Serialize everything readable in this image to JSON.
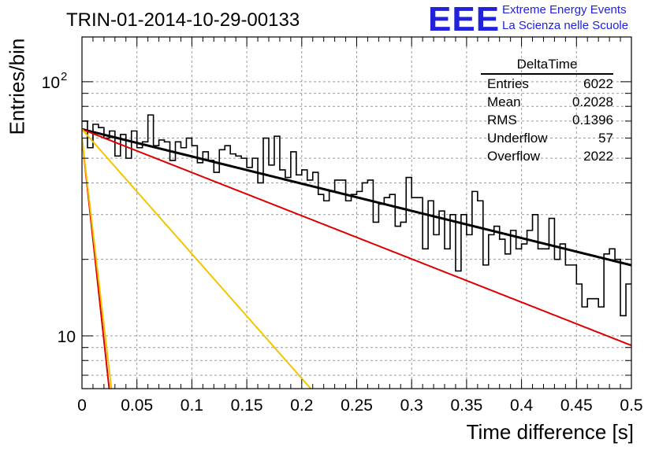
{
  "header": {
    "run_title": "TRIN-01-2014-10-29-00133",
    "logo_mark": "EEE",
    "logo_line1": "Extreme Energy Events",
    "logo_line2": "La Scienza nelle Scuole"
  },
  "stats_box": {
    "title": "DeltaTime",
    "rows": [
      {
        "label": "Entries",
        "value": "6022"
      },
      {
        "label": "Mean",
        "value": "0.2028"
      },
      {
        "label": "RMS",
        "value": "0.1396"
      },
      {
        "label": "Underflow",
        "value": "57"
      },
      {
        "label": "Overflow",
        "value": "2022"
      }
    ]
  },
  "chart_data": {
    "type": "line",
    "xlabel": "Time difference [s]",
    "ylabel": "Entries/bin",
    "xlim": [
      0,
      0.5
    ],
    "ylim": [
      6.2,
      150
    ],
    "y_scale": "log",
    "grid": true,
    "x_ticks": [
      "0",
      "0.05",
      "0.1",
      "0.15",
      "0.2",
      "0.25",
      "0.3",
      "0.35",
      "0.4",
      "0.45",
      "0.5"
    ],
    "y_tick_labels": [
      {
        "value": 10,
        "label": "10"
      },
      {
        "value": 100,
        "label": "10^2"
      }
    ],
    "histogram": {
      "bin_width": 0.005,
      "values": [
        70,
        55,
        68,
        66,
        60,
        64,
        51,
        62,
        50,
        64,
        55,
        58,
        74,
        56,
        59,
        58,
        49,
        58,
        55,
        60,
        56,
        48,
        53,
        49,
        44,
        54,
        56,
        52,
        51,
        50,
        46,
        50,
        40,
        60,
        47,
        61,
        45,
        42,
        53,
        43,
        45,
        41,
        44,
        36,
        34,
        37,
        41,
        41,
        34,
        36,
        37,
        40,
        41,
        28,
        33,
        35,
        36,
        27,
        28,
        42,
        35,
        35,
        22,
        34,
        25,
        31,
        22,
        30,
        18,
        30,
        25,
        37,
        34,
        19,
        25,
        27,
        24,
        21,
        26,
        22,
        23,
        26,
        30,
        22,
        22,
        29,
        20,
        23,
        19,
        19,
        16,
        13,
        14,
        14,
        13,
        21,
        22,
        20,
        12,
        16
      ]
    },
    "series": [
      {
        "name": "total_fit",
        "color": "#000000",
        "y0": 65.0,
        "tau": 0.4059
      },
      {
        "name": "slow_component",
        "color": "#dd0000",
        "y0": 65.0,
        "tau": 0.2553
      },
      {
        "name": "medium_component",
        "color": "#f5c400",
        "y0": 65.0,
        "tau": 0.0886
      },
      {
        "name": "fast_red",
        "color": "#dd0000",
        "y0": 60.0,
        "tau": 0.0109
      },
      {
        "name": "fast_yellow",
        "color": "#f5c400",
        "y0": 60.0,
        "tau": 0.0118
      }
    ]
  }
}
